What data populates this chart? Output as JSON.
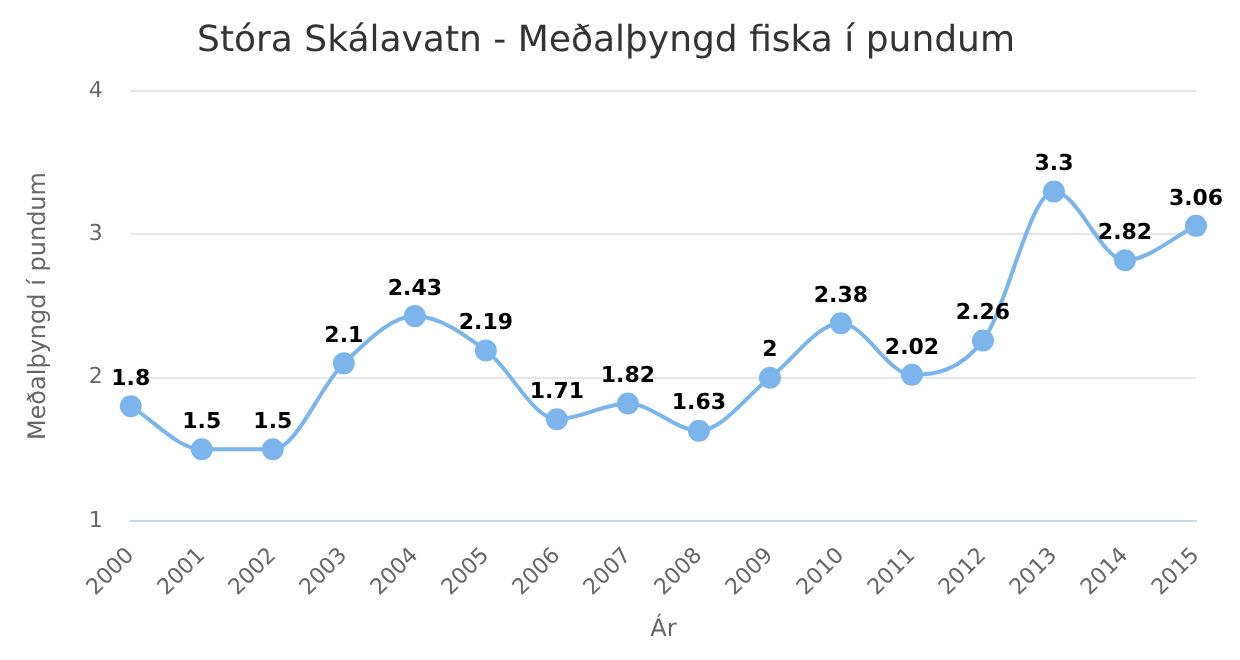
{
  "chart_data": {
    "type": "line",
    "title": "Stóra Skálavatn - Meðalþyngd fiska í pundum",
    "xlabel": "Ár",
    "ylabel": "Meðalþyngd í pundum",
    "categories": [
      "2000",
      "2001",
      "2002",
      "2003",
      "2004",
      "2005",
      "2006",
      "2007",
      "2008",
      "2009",
      "2010",
      "2011",
      "2012",
      "2013",
      "2014",
      "2015"
    ],
    "series": [
      {
        "color": "#7cb5ec",
        "values": [
          1.8,
          1.5,
          1.5,
          2.1,
          2.43,
          2.19,
          1.71,
          1.82,
          1.63,
          2,
          2.38,
          2.02,
          2.26,
          3.3,
          2.82,
          3.06
        ]
      }
    ],
    "ylim": [
      1,
      4
    ],
    "yticks": [
      1,
      2,
      3,
      4
    ],
    "grid": "y",
    "legend": false,
    "marker": "circle",
    "line_style": "solid",
    "data_labels": true
  }
}
